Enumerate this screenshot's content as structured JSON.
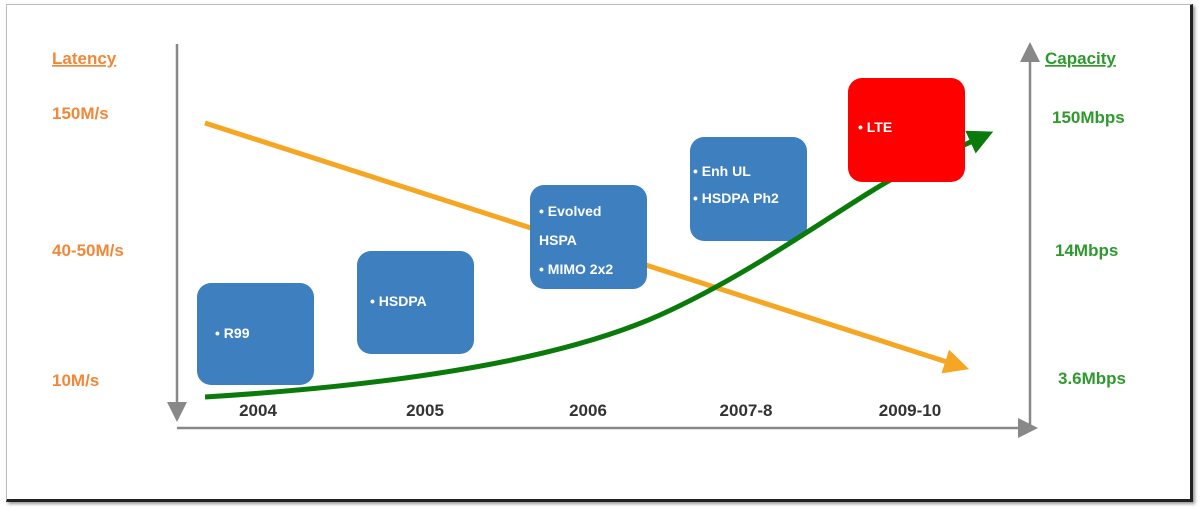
{
  "left_axis": {
    "title": "Latency",
    "labels": [
      "150M/s",
      "40-50M/s",
      "10M/s"
    ],
    "color": "#f0883a"
  },
  "right_axis": {
    "title": "Capacity",
    "labels": [
      "150Mbps",
      "14Mbps",
      "3.6Mbps"
    ],
    "color": "#2e9a2e"
  },
  "x_axis": {
    "labels": [
      "2004",
      "2005",
      "2006",
      "2007-8",
      "2009-10"
    ]
  },
  "boxes": [
    {
      "lines": [
        "• R99"
      ],
      "color": "#3d7fbf"
    },
    {
      "lines": [
        "•  HSDPA"
      ],
      "color": "#3d7fbf"
    },
    {
      "lines": [
        "• Evolved",
        "HSPA",
        "• MIMO 2x2"
      ],
      "color": "#3d7fbf"
    },
    {
      "lines": [
        "• Enh UL",
        "• HSDPA Ph2"
      ],
      "color": "#3d7fbf"
    },
    {
      "lines": [
        "• LTE"
      ],
      "color": "#ff0000"
    }
  ],
  "trends": {
    "latency_color": "#f5a623",
    "capacity_color": "#0a7a0a"
  }
}
